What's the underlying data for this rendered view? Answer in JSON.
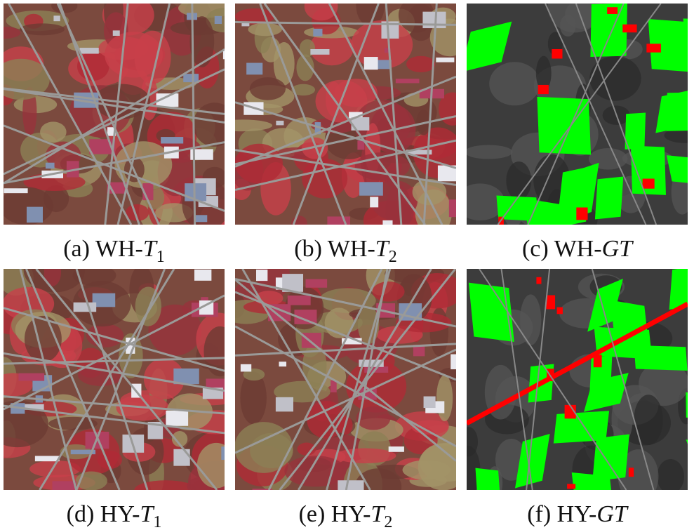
{
  "panels": [
    {
      "caption": {
        "prefix": "(a) WH-",
        "italic": "T",
        "sub": "1"
      }
    },
    {
      "caption": {
        "prefix": "(b) WH-",
        "italic": "T",
        "sub": "2"
      }
    },
    {
      "caption": {
        "prefix": "(c) WH-",
        "italic": "GT",
        "sub": null
      }
    },
    {
      "caption": {
        "prefix": "(d) HY-",
        "italic": "T",
        "sub": "1"
      }
    },
    {
      "caption": {
        "prefix": "(e) HY-",
        "italic": "T",
        "sub": "2"
      }
    },
    {
      "caption": {
        "prefix": "(f) HY-",
        "italic": "GT",
        "sub": null
      }
    }
  ]
}
